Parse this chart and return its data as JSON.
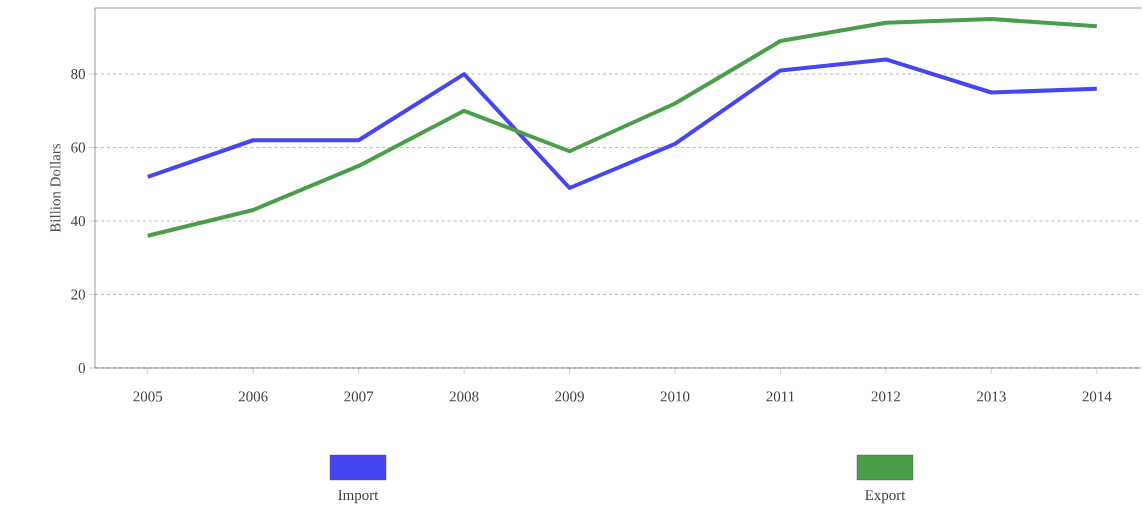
{
  "chart_data": {
    "type": "line",
    "ylabel": "Billion Dollars",
    "categories": [
      "2005",
      "2006",
      "2007",
      "2008",
      "2009",
      "2010",
      "2011",
      "2012",
      "2013",
      "2014"
    ],
    "series": [
      {
        "name": "Import",
        "color": "#4646f0",
        "values": [
          52,
          62,
          62,
          80,
          49,
          61,
          81,
          84,
          75,
          76
        ]
      },
      {
        "name": "Export",
        "color": "#4a9e4a",
        "values": [
          36,
          43,
          55,
          70,
          59,
          72,
          89,
          94,
          95,
          93
        ]
      }
    ],
    "ylim": [
      0,
      98
    ],
    "yticks": [
      0,
      20,
      40,
      60,
      80
    ],
    "grid": "y",
    "legend": "bottom",
    "line_style": "solid",
    "marker": "none"
  }
}
